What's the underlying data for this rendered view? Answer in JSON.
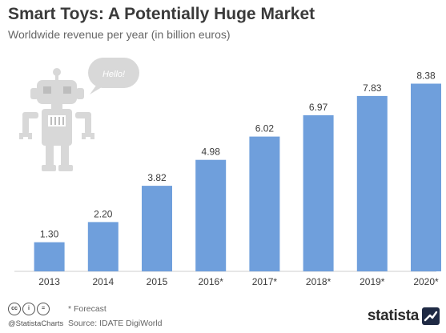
{
  "header": {
    "title": "Smart Toys: A Potentially Huge Market",
    "subtitle": "Worldwide revenue per year (in billion euros)"
  },
  "illustration": {
    "speech_text": "Hello!"
  },
  "chart_data": {
    "type": "bar",
    "title": "Smart Toys: A Potentially Huge Market",
    "subtitle": "Worldwide revenue per year (in billion euros)",
    "categories": [
      "2013",
      "2014",
      "2015",
      "2016*",
      "2017*",
      "2018*",
      "2019*",
      "2020*"
    ],
    "values": [
      1.3,
      2.2,
      3.82,
      4.98,
      6.02,
      6.97,
      7.83,
      8.38
    ],
    "value_labels": [
      "1.30",
      "2.20",
      "3.82",
      "4.98",
      "6.02",
      "6.97",
      "7.83",
      "8.38"
    ],
    "ylim": [
      0,
      8.9
    ],
    "grid": false,
    "legend": "none",
    "colors": {
      "bar": "#6f9fdc",
      "text": "#3a3a3a"
    }
  },
  "footer": {
    "forecast_note": "* Forecast",
    "source": "Source: IDATE DigiWorld",
    "handle": "@StatistaCharts",
    "cc_icons": [
      "cc",
      "i",
      "="
    ],
    "brand": "statista"
  }
}
